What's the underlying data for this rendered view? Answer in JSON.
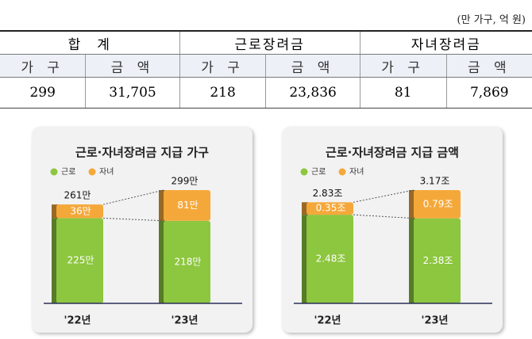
{
  "table": {
    "unit_note": "(만 가구, 억 원)",
    "header": [
      "합　계",
      "근로장려금",
      "자녀장려금"
    ],
    "subheader": [
      "가 구",
      "금 액",
      "가 구",
      "금 액",
      "가 구",
      "금 액"
    ],
    "rows": [
      [
        "299",
        "31,705",
        "218",
        "23,836",
        "81",
        "7,869"
      ]
    ]
  },
  "chart_data": [
    {
      "type": "stacked_bar",
      "title": "근로·자녀장려금 지급 가구",
      "categories": [
        "'22년",
        "'23년"
      ],
      "series": [
        {
          "name": "근로",
          "color": "#8dc63f",
          "values": [
            225,
            218
          ],
          "value_labels": [
            "225만",
            "218만"
          ]
        },
        {
          "name": "자녀",
          "color": "#f5a83a",
          "values": [
            36,
            81
          ],
          "value_labels": [
            "36만",
            "81만"
          ]
        }
      ],
      "totals": {
        "values": [
          261,
          299
        ],
        "value_labels": [
          "261만",
          "299만"
        ]
      }
    },
    {
      "type": "stacked_bar",
      "title": "근로·자녀장려금 지급 금액",
      "categories": [
        "'22년",
        "'23년"
      ],
      "series": [
        {
          "name": "근로",
          "color": "#8dc63f",
          "values": [
            2.48,
            2.38
          ],
          "value_labels": [
            "2.48조",
            "2.38조"
          ]
        },
        {
          "name": "자녀",
          "color": "#f5a83a",
          "values": [
            0.35,
            0.79
          ],
          "value_labels": [
            "0.35조",
            "0.79조"
          ]
        }
      ],
      "totals": {
        "values": [
          2.83,
          3.17
        ],
        "value_labels": [
          "2.83조",
          "3.17조"
        ]
      }
    }
  ]
}
